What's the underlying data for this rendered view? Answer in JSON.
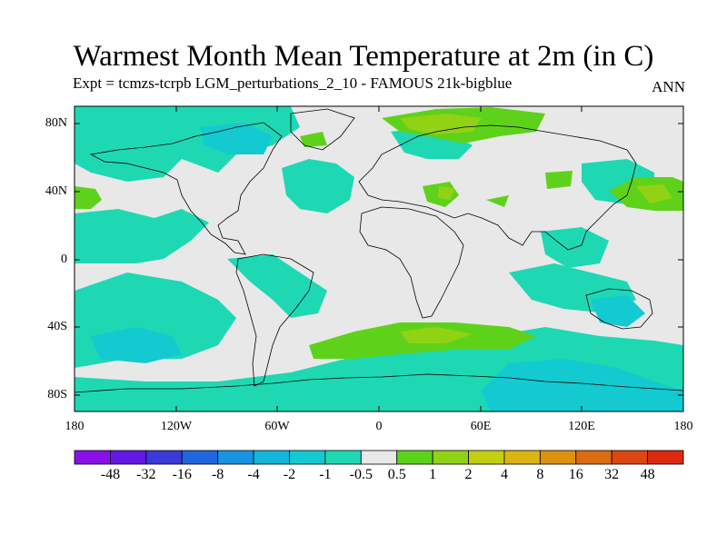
{
  "title": "Warmest Month Mean Temperature at 2m (in C)",
  "subtitle": "Expt = tcmzs-tcrpb   LGM_perturbations_2_10 - FAMOUS 21k-bigblue",
  "season": "ANN",
  "lat_ticks": [
    "80N",
    "40N",
    "0",
    "40S",
    "80S"
  ],
  "lon_ticks": [
    "180",
    "120W",
    "60W",
    "0",
    "60E",
    "120E",
    "180"
  ],
  "colorbar": {
    "labels": [
      "-48",
      "-32",
      "-16",
      "-8",
      "-4",
      "-2",
      "-1",
      "-0.5",
      "0.5",
      "1",
      "2",
      "4",
      "8",
      "16",
      "32",
      "48"
    ],
    "colors": [
      "#8a10e8",
      "#6418e6",
      "#3a3ad8",
      "#1f67e0",
      "#1894e2",
      "#14b6dc",
      "#12cad0",
      "#1ed8b4",
      "#e8e8e8",
      "#5ed21a",
      "#92d214",
      "#c2d010",
      "#dcb414",
      "#dc9210",
      "#dc6c10",
      "#dc4610",
      "#dc2a10"
    ]
  },
  "map_data": {
    "lon_range": [
      -180,
      180
    ],
    "lat_range": [
      -90,
      90
    ],
    "regions": [
      {
        "name": "arctic-cooling",
        "level": "-1",
        "lon": [
          -180,
          -60
        ],
        "lat": [
          58,
          80
        ]
      },
      {
        "name": "north-atlantic-cooling",
        "level": "-1",
        "lon": [
          -55,
          -20
        ],
        "lat": [
          28,
          50
        ]
      },
      {
        "name": "siberia-warming",
        "level": "1",
        "lon": [
          0,
          60
        ],
        "lat": [
          68,
          80
        ]
      },
      {
        "name": "north-pacific-warming",
        "level": "1",
        "lon": [
          148,
          180
        ],
        "lat": [
          32,
          46
        ]
      },
      {
        "name": "southern-ocean-warming",
        "level": "1",
        "lon": [
          -40,
          45
        ],
        "lat": [
          -62,
          -40
        ]
      },
      {
        "name": "antarctic-cooling",
        "level": "-1",
        "lon": [
          -180,
          180
        ],
        "lat": [
          -90,
          -72
        ]
      }
    ]
  }
}
